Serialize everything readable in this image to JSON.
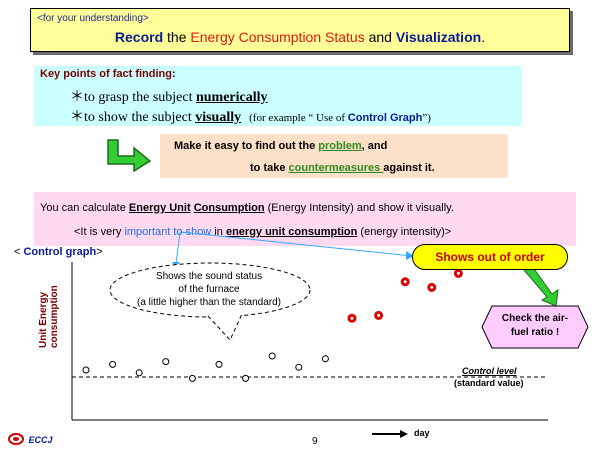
{
  "title": {
    "small": "<for your understanding>",
    "main_parts": [
      "Record",
      " the ",
      "Energy Consumption Status",
      " and ",
      "Visualization",
      "."
    ]
  },
  "key_points": {
    "heading": "Key points of fact finding",
    "colon": ":",
    "line1_prefix": "＊to grasp the subject ",
    "line1_emph": "numerically",
    "line2_prefix": "＊to show the subject ",
    "line2_emph": "visually",
    "line2_note_prefix": "(for example “ Use of ",
    "line2_note_emph": "Control Graph",
    "line2_note_suffix": "”)"
  },
  "problem_box": {
    "line1_prefix": "Make it easy to find out the ",
    "line1_emph": "problem",
    "line1_suffix": ", and",
    "line2_prefix": "to take ",
    "line2_emph": "countermeasures ",
    "line2_suffix": "against it."
  },
  "pink_box": {
    "line1_prefix": "You can calculate ",
    "line1_emph1": "Energy Unit",
    "line1_emph2": "Consumption",
    "line1_suffix": " (Energy Intensity) and show it visually.",
    "line2_prefix": "<It is very ",
    "line2_important": "important to show",
    "line2_mid": " in ",
    "line2_emph": "energy unit consumption",
    "line2_suffix": " (energy intensity)>"
  },
  "control_graph_label": {
    "open": "< ",
    "text": "Control graph",
    "close": ">"
  },
  "callouts": {
    "bubble": [
      "Shows the sound status",
      "of the furnace",
      "(a little higher than the standard)"
    ],
    "out_of_order": "Shows out of order",
    "check": [
      "Check the air-",
      "fuel ratio !"
    ]
  },
  "axis": {
    "y_label": "Unit Energy consumption",
    "x_label": "day",
    "control_level": "Control level",
    "standard_value": "(standard value)"
  },
  "chart_data": {
    "type": "scatter",
    "title": "",
    "xlabel": "day",
    "ylabel": "Unit Energy consumption",
    "control_level": 0,
    "series": [
      {
        "values": [
          [
            1,
            0.25
          ],
          [
            2,
            0.45
          ],
          [
            3,
            0.15
          ],
          [
            4,
            0.55
          ],
          [
            5,
            -0.05
          ],
          [
            6,
            0.45
          ],
          [
            7,
            -0.05
          ],
          [
            8,
            0.75
          ],
          [
            9,
            0.35
          ],
          [
            10,
            0.65
          ]
        ],
        "color": "#000000"
      },
      {
        "values": [
          [
            11,
            2.1
          ],
          [
            12,
            2.2
          ],
          [
            13,
            3.4
          ],
          [
            14,
            3.2
          ],
          [
            15,
            3.7
          ]
        ],
        "color": "#dd0000"
      }
    ]
  },
  "page_number": "9",
  "logo": {
    "text": "ECCJ"
  },
  "colors": {
    "title_bg": "#ffff99",
    "keypoints_bg": "#ccffff",
    "problem_bg": "#fde0c8",
    "pink_bg": "#ffd9f0",
    "check_bg": "#ffccff",
    "arrow_green": "#33cc33",
    "alert_yellow": "#ffff00"
  }
}
